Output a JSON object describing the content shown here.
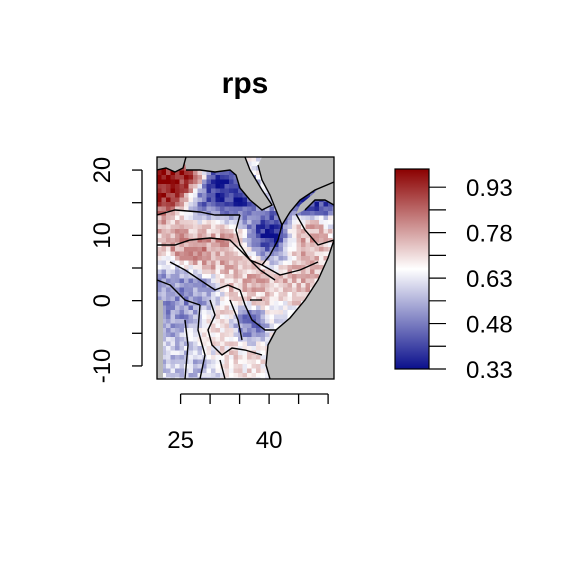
{
  "title": "rps",
  "map": {
    "x_axis": {
      "ticks": [
        25,
        30,
        35,
        40,
        45,
        50
      ],
      "labels": [
        "25",
        "40"
      ],
      "range": [
        21,
        51
      ]
    },
    "y_axis": {
      "ticks": [
        -10,
        -5,
        0,
        5,
        10,
        15,
        20
      ],
      "labels": [
        "-10",
        "0",
        "10",
        "20"
      ],
      "range": [
        -12,
        22
      ]
    },
    "land_color": "#b8b8b8",
    "border_color": "#000000"
  },
  "colorbar": {
    "min": 0.33,
    "max": 0.99,
    "tick_values": [
      0.33,
      0.48,
      0.63,
      0.78,
      0.93
    ],
    "tick_labels": [
      "0.33",
      "0.48",
      "0.63",
      "0.78",
      "0.93"
    ],
    "colors": {
      "low": "#0a0f8c",
      "mid": "#ffffff",
      "high": "#8b0000"
    }
  }
}
